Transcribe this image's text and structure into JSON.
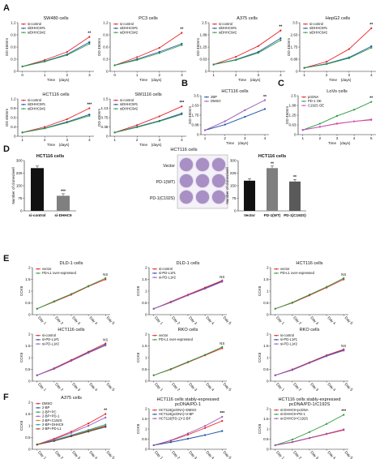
{
  "panel_labels": {
    "A": "A",
    "B": "B",
    "C": "C",
    "D": "D",
    "E": "E",
    "F": "F"
  },
  "chart_data": [
    {
      "id": "a1",
      "type": "line",
      "title": "SW480 cells",
      "xlabel": "Time",
      "xunit": "(days)",
      "ylabel": "OD 450nm",
      "x": [
        0,
        1,
        2,
        3
      ],
      "ylim": [
        0,
        1.2
      ],
      "series": [
        {
          "name": "si-control",
          "color": "#e8262a",
          "values": [
            0.12,
            0.28,
            0.48,
            0.85
          ]
        },
        {
          "name": "siDHHC9#1",
          "color": "#1f4fa5",
          "values": [
            0.12,
            0.25,
            0.42,
            0.72
          ]
        },
        {
          "name": "siDHHC9#2",
          "color": "#2a9a3f",
          "values": [
            0.12,
            0.24,
            0.4,
            0.68
          ]
        }
      ],
      "annotations": [
        "**"
      ]
    },
    {
      "id": "a2",
      "type": "line",
      "title": "PC3 cells",
      "xlabel": "Time",
      "xunit": "(days)",
      "ylabel": "OD 450nm",
      "x": [
        0,
        1,
        2,
        3
      ],
      "ylim": [
        0,
        1.2
      ],
      "series": [
        {
          "name": "si-control",
          "color": "#e8262a",
          "values": [
            0.15,
            0.35,
            0.58,
            0.95
          ]
        },
        {
          "name": "siDHHC9#1",
          "color": "#1f4fa5",
          "values": [
            0.15,
            0.3,
            0.48,
            0.68
          ]
        },
        {
          "name": "siDHHC9#2",
          "color": "#2a9a3f",
          "values": [
            0.15,
            0.28,
            0.45,
            0.65
          ]
        }
      ],
      "annotations": [
        "**"
      ]
    },
    {
      "id": "a3",
      "type": "line",
      "title": "A375 cells",
      "xlabel": "Time",
      "xunit": "(days)",
      "ylabel": "OD 450nm",
      "x": [
        1,
        2,
        3,
        4
      ],
      "ylim": [
        0,
        2.5
      ],
      "series": [
        {
          "name": "si-control",
          "color": "#e8262a",
          "values": [
            0.35,
            0.75,
            1.3,
            2.1
          ]
        },
        {
          "name": "siDHHC9#1",
          "color": "#1f4fa5",
          "values": [
            0.35,
            0.6,
            1.0,
            1.7
          ]
        },
        {
          "name": "siDHHC9#2",
          "color": "#2a9a3f",
          "values": [
            0.35,
            0.58,
            0.95,
            1.6
          ]
        }
      ],
      "annotations": [
        "**"
      ]
    },
    {
      "id": "a4",
      "type": "line",
      "title": "HepG2 cells",
      "xlabel": "Time",
      "xunit": "(days)",
      "ylabel": "OD 450nm",
      "x": [
        1,
        2,
        3,
        4
      ],
      "ylim": [
        0,
        3.5
      ],
      "series": [
        {
          "name": "si-control",
          "color": "#e8262a",
          "values": [
            0.25,
            0.7,
            1.6,
            3.1
          ]
        },
        {
          "name": "siDHHC9#1",
          "color": "#1f4fa5",
          "values": [
            0.25,
            0.55,
            1.0,
            1.8
          ]
        },
        {
          "name": "siDHHC9#2",
          "color": "#2a9a3f",
          "values": [
            0.25,
            0.52,
            0.95,
            1.7
          ]
        }
      ],
      "annotations": [
        "**"
      ]
    },
    {
      "id": "a5",
      "type": "line",
      "title": "HCT116 cells",
      "xlabel": "Time",
      "xunit": "(days)",
      "ylabel": "OD 450nm",
      "x": [
        1,
        2,
        3,
        4
      ],
      "ylim": [
        0,
        1.2
      ],
      "series": [
        {
          "name": "si-control",
          "color": "#e8262a",
          "values": [
            0.12,
            0.3,
            0.55,
            0.9
          ]
        },
        {
          "name": "siDHHC9#1",
          "color": "#1f4fa5",
          "values": [
            0.12,
            0.26,
            0.46,
            0.7
          ]
        },
        {
          "name": "siDHHC9#2",
          "color": "#2a9a3f",
          "values": [
            0.12,
            0.25,
            0.44,
            0.66
          ]
        }
      ],
      "annotations": [
        "***"
      ]
    },
    {
      "id": "a6",
      "type": "line",
      "title": "SW1116 cells",
      "xlabel": "Time",
      "xunit": "(days)",
      "ylabel": "OD 450nm",
      "x": [
        1,
        2,
        3,
        4
      ],
      "ylim": [
        0,
        1.5
      ],
      "series": [
        {
          "name": "si-control",
          "color": "#e8262a",
          "values": [
            0.15,
            0.45,
            0.8,
            1.2
          ]
        },
        {
          "name": "siDHHC9#1",
          "color": "#1f4fa5",
          "values": [
            0.15,
            0.38,
            0.62,
            0.92
          ]
        },
        {
          "name": "siDHHC9#2",
          "color": "#2a9a3f",
          "values": [
            0.15,
            0.36,
            0.6,
            0.88
          ]
        }
      ],
      "annotations": [
        "***"
      ]
    },
    {
      "id": "b1",
      "type": "line",
      "title": "HCT116 cells",
      "xlabel": "Time",
      "xunit": "(days)",
      "ylabel": "OD 450nm",
      "x": [
        1,
        2,
        3,
        4
      ],
      "ylim": [
        0,
        3.5
      ],
      "series": [
        {
          "name": "2BP",
          "color": "#1f4fa5",
          "values": [
            0.4,
            0.9,
            1.6,
            2.3
          ]
        },
        {
          "name": "DMSO",
          "color": "#9b59b6",
          "values": [
            0.4,
            1.2,
            2.2,
            3.1
          ]
        }
      ],
      "annotations": [
        "**"
      ]
    },
    {
      "id": "c1",
      "type": "line",
      "title": "LoVo cells",
      "xlabel": "Time",
      "xunit": "(days)",
      "ylabel": "OD 450nm",
      "x": [
        1,
        2,
        3,
        4,
        5
      ],
      "ylim": [
        0,
        2.5
      ],
      "series": [
        {
          "name": "pcDNA",
          "color": "#e8262a",
          "values": [
            0.3,
            0.5,
            0.7,
            0.85,
            0.95
          ]
        },
        {
          "name": "PD-1 OE",
          "color": "#2a9a3f",
          "values": [
            0.3,
            0.7,
            1.2,
            1.6,
            2.1
          ]
        },
        {
          "name": "C192S OE",
          "color": "#c653c9",
          "values": [
            0.3,
            0.5,
            0.72,
            0.85,
            0.98
          ]
        }
      ],
      "annotations": [
        "**"
      ]
    },
    {
      "id": "d1",
      "type": "bar",
      "title": "HCT116 cells",
      "ylabel": "Number of clones/well",
      "categories": [
        "si-control",
        "si-DHHC9"
      ],
      "ylim": [
        0,
        300
      ],
      "values": [
        255,
        90
      ],
      "colors": [
        "#111111",
        "#7f7f7f"
      ],
      "annotations": [
        "",
        "***"
      ]
    },
    {
      "id": "d2",
      "type": "bar",
      "title": "HCT116 cells",
      "ylabel": "Number of clones/well",
      "categories": [
        "Vector",
        "PD-1(WT)",
        "PD-1(C192S)"
      ],
      "ylim": [
        0,
        300
      ],
      "values": [
        180,
        255,
        175
      ],
      "colors": [
        "#111111",
        "#7f7f7f",
        "#5a5a5a"
      ],
      "annotations": [
        "",
        "**",
        "**"
      ]
    },
    {
      "id": "e1",
      "type": "line",
      "title": "DLD-1 cells",
      "ylabel": "CCK8",
      "x": [
        "Day 1",
        "Day 2",
        "Day 3",
        "Day 4",
        "Day 5"
      ],
      "ylim": [
        0,
        2.0
      ],
      "series": [
        {
          "name": "vector",
          "color": "#e8262a",
          "values": [
            0.25,
            0.55,
            0.85,
            1.2,
            1.5
          ]
        },
        {
          "name": "PD-L1 over-expressed",
          "color": "#2a9a3f",
          "values": [
            0.25,
            0.57,
            0.88,
            1.22,
            1.55
          ]
        }
      ],
      "annotations": [
        "NS"
      ]
    },
    {
      "id": "e2",
      "type": "line",
      "title": "DLD-1 cells",
      "ylabel": "CCK8",
      "x": [
        "Day 1",
        "Day 2",
        "Day 3",
        "Day 4",
        "Day 5"
      ],
      "ylim": [
        0,
        2.0
      ],
      "series": [
        {
          "name": "si-control",
          "color": "#e8262a",
          "values": [
            0.25,
            0.55,
            0.85,
            1.15,
            1.45
          ]
        },
        {
          "name": "si-PD-L1#1",
          "color": "#1f4fa5",
          "values": [
            0.25,
            0.53,
            0.83,
            1.12,
            1.42
          ]
        },
        {
          "name": "si-PD-L1#2",
          "color": "#9b59b6",
          "values": [
            0.25,
            0.52,
            0.82,
            1.1,
            1.4
          ]
        }
      ],
      "annotations": [
        "NS"
      ]
    },
    {
      "id": "e3",
      "type": "line",
      "title": "HCT116 cells",
      "ylabel": "CCK8",
      "x": [
        "Day 1",
        "Day 2",
        "Day 3",
        "Day 4",
        "Day 5"
      ],
      "ylim": [
        0,
        2.0
      ],
      "series": [
        {
          "name": "vector",
          "color": "#e8262a",
          "values": [
            0.25,
            0.5,
            0.82,
            1.15,
            1.5
          ]
        },
        {
          "name": "PD-L1 over-expressed",
          "color": "#2a9a3f",
          "values": [
            0.25,
            0.52,
            0.85,
            1.18,
            1.55
          ]
        }
      ],
      "annotations": [
        "NS"
      ]
    },
    {
      "id": "e4",
      "type": "line",
      "title": "HCT116 cells",
      "ylabel": "CCK8",
      "x": [
        "Day 1",
        "Day 2",
        "Day 3",
        "Day 4",
        "Day 5"
      ],
      "ylim": [
        0,
        2.0
      ],
      "series": [
        {
          "name": "si-control",
          "color": "#e8262a",
          "values": [
            0.25,
            0.55,
            0.9,
            1.25,
            1.6
          ]
        },
        {
          "name": "si-PD-L1#1",
          "color": "#1f4fa5",
          "values": [
            0.25,
            0.53,
            0.87,
            1.22,
            1.55
          ]
        },
        {
          "name": "si-PD-L1#2",
          "color": "#9b59b6",
          "values": [
            0.25,
            0.52,
            0.86,
            1.2,
            1.52
          ]
        }
      ],
      "annotations": [
        "NS"
      ]
    },
    {
      "id": "e5",
      "type": "line",
      "title": "RKO cells",
      "ylabel": "CCK8",
      "x": [
        "Day 1",
        "Day 2",
        "Day 3",
        "Day 4",
        "Day 5"
      ],
      "ylim": [
        0,
        2.0
      ],
      "series": [
        {
          "name": "vector",
          "color": "#e8262a",
          "values": [
            0.25,
            0.5,
            0.8,
            1.1,
            1.4
          ]
        },
        {
          "name": "PD-L1 over-expressed",
          "color": "#2a9a3f",
          "values": [
            0.25,
            0.52,
            0.82,
            1.12,
            1.45
          ]
        }
      ],
      "annotations": [
        "NS"
      ]
    },
    {
      "id": "e6",
      "type": "line",
      "title": "RKO cells",
      "ylabel": "CCK8",
      "x": [
        "Day 1",
        "Day 2",
        "Day 3",
        "Day 4",
        "Day 5"
      ],
      "ylim": [
        0,
        2.0
      ],
      "series": [
        {
          "name": "si-control",
          "color": "#e8262a",
          "values": [
            0.25,
            0.5,
            0.8,
            1.1,
            1.35
          ]
        },
        {
          "name": "si-PD-L1#1",
          "color": "#1f4fa5",
          "values": [
            0.25,
            0.48,
            0.78,
            1.08,
            1.32
          ]
        },
        {
          "name": "si-PD-L1#2",
          "color": "#9b59b6",
          "values": [
            0.25,
            0.47,
            0.77,
            1.06,
            1.3
          ]
        }
      ],
      "annotations": [
        "NS"
      ]
    },
    {
      "id": "f1",
      "type": "line",
      "title": "A375 cells",
      "ylabel": "CCK8",
      "x": [
        "Day 1",
        "Day 2",
        "Day 3",
        "Day 4",
        "Day 5"
      ],
      "ylim": [
        0,
        2.0
      ],
      "series": [
        {
          "name": "DMSO",
          "color": "#e8262a",
          "values": [
            0.2,
            0.45,
            0.75,
            1.1,
            1.5
          ]
        },
        {
          "name": "2-BP",
          "color": "#1f4fa5",
          "values": [
            0.2,
            0.35,
            0.55,
            0.75,
            0.95
          ]
        },
        {
          "name": "2-BP+PC",
          "color": "#2a9a3f",
          "values": [
            0.2,
            0.36,
            0.56,
            0.78,
            0.98
          ]
        },
        {
          "name": "2-BP+PD-1",
          "color": "#9b59b6",
          "values": [
            0.2,
            0.42,
            0.7,
            1.0,
            1.35
          ]
        },
        {
          "name": "2-BP+C192S",
          "color": "#e67e22",
          "values": [
            0.2,
            0.37,
            0.57,
            0.8,
            1.0
          ]
        },
        {
          "name": "2-BP+DHHC9",
          "color": "#17a2b8",
          "values": [
            0.2,
            0.38,
            0.6,
            0.82,
            1.05
          ]
        },
        {
          "name": "2-BP+PD-L1",
          "color": "#8b4513",
          "values": [
            0.2,
            0.36,
            0.56,
            0.76,
            0.97
          ]
        }
      ],
      "annotations": [
        "**"
      ]
    },
    {
      "id": "f2",
      "type": "line",
      "title": "HCT116 cells stably-expressed",
      "subtitle": "pcDNA/PD-1",
      "ylabel": "CCK8",
      "x": [
        "Day 1",
        "Day 2",
        "Day 3",
        "Day 4",
        "Day 5"
      ],
      "ylim": [
        0,
        2.0
      ],
      "series": [
        {
          "name": "HCT116(pcDNA)+DMSO",
          "color": "#e8262a",
          "values": [
            0.2,
            0.42,
            0.72,
            1.05,
            1.4
          ]
        },
        {
          "name": "HCT116(pcDNA)+2-BP",
          "color": "#1f4fa5",
          "values": [
            0.2,
            0.35,
            0.52,
            0.7,
            0.9
          ]
        },
        {
          "name": "HCT116(PD-1)+2-BP",
          "color": "#9b59b6",
          "values": [
            0.2,
            0.44,
            0.78,
            1.15,
            1.6
          ]
        }
      ],
      "annotations": [
        "***"
      ]
    },
    {
      "id": "f3",
      "type": "line",
      "title": "HCT116 cells stably-expressed",
      "subtitle": "pcDNA/PD-1/C192S",
      "ylabel": "CCK8",
      "x": [
        "Day 1",
        "Day 2",
        "Day 3",
        "Day 4",
        "Day 5"
      ],
      "ylim": [
        0,
        2.0
      ],
      "series": [
        {
          "name": "si-DHHC9+pcDNA",
          "color": "#e8262a",
          "values": [
            0.2,
            0.35,
            0.55,
            0.75,
            0.95
          ]
        },
        {
          "name": "si-DHHC9+PD-1",
          "color": "#2a9a3f",
          "values": [
            0.2,
            0.48,
            0.85,
            1.25,
            1.7
          ]
        },
        {
          "name": "si-DHHC9+C192S",
          "color": "#9b59b6",
          "values": [
            0.2,
            0.36,
            0.56,
            0.77,
            0.98
          ]
        }
      ],
      "annotations": [
        "***"
      ]
    }
  ],
  "colony_panel": {
    "title": "HCT116 cells",
    "row_labels": [
      "Vector",
      "PD-1(WT)",
      "PD-1(C192S)"
    ],
    "well_color": "#a88fc4",
    "well_border": "#e3dbee"
  }
}
